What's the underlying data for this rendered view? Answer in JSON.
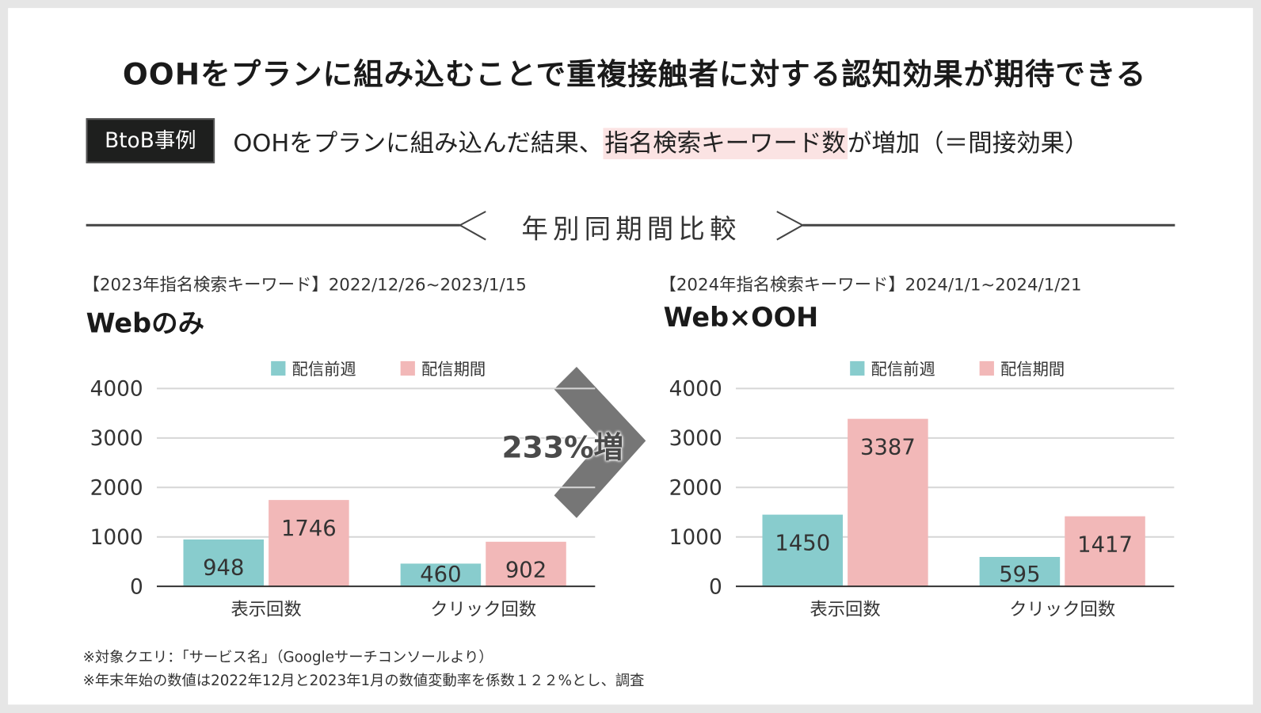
{
  "title": "OOHをプランに組み込むことで重複接触者に対する認知効果が期待できる",
  "badge": "BtoB事例",
  "subtitle": {
    "pre": "OOHをプランに組み込んだ結果、",
    "highlight": "指名検索キーワード数",
    "post": "が増加（＝間接効果）"
  },
  "section_title": "年別同期間比較",
  "increase_label": "233%増",
  "left_panel": {
    "period": "【2023年指名検索キーワード】2022/12/26~2023/1/15",
    "heading": "Webのみ"
  },
  "right_panel": {
    "period": "【2024年指名検索キーワード】2024/1/1~2024/1/21",
    "heading": "Web×OOH"
  },
  "notes": [
    "※対象クエリ：「サービス名」（Googleサーチコンソールより）",
    "※年末年始の数値は2022年12月と2023年1月の数値変動率を係数１２２%とし、調査"
  ],
  "colors": {
    "before": "#88cccd",
    "during": "#f2b8b8",
    "arrow": "#767676",
    "highlight": "#fbe3e3"
  },
  "chart_data": [
    {
      "type": "bar",
      "title": "Webのみ",
      "categories": [
        "表示回数",
        "クリック回数"
      ],
      "series": [
        {
          "name": "配信前週",
          "values": [
            948,
            460
          ]
        },
        {
          "name": "配信期間",
          "values": [
            1746,
            902
          ]
        }
      ],
      "yticks": [
        "0",
        "1000",
        "2000",
        "3000",
        "4000"
      ],
      "ylim": [
        0,
        4000
      ],
      "grid": true,
      "legend": "top"
    },
    {
      "type": "bar",
      "title": "Web×OOH",
      "categories": [
        "表示回数",
        "クリック回数"
      ],
      "series": [
        {
          "name": "配信前週",
          "values": [
            1450,
            595
          ]
        },
        {
          "name": "配信期間",
          "values": [
            3387,
            1417
          ]
        }
      ],
      "yticks": [
        "0",
        "1000",
        "2000",
        "3000",
        "4000"
      ],
      "ylim": [
        0,
        4000
      ],
      "grid": true,
      "legend": "top"
    }
  ]
}
